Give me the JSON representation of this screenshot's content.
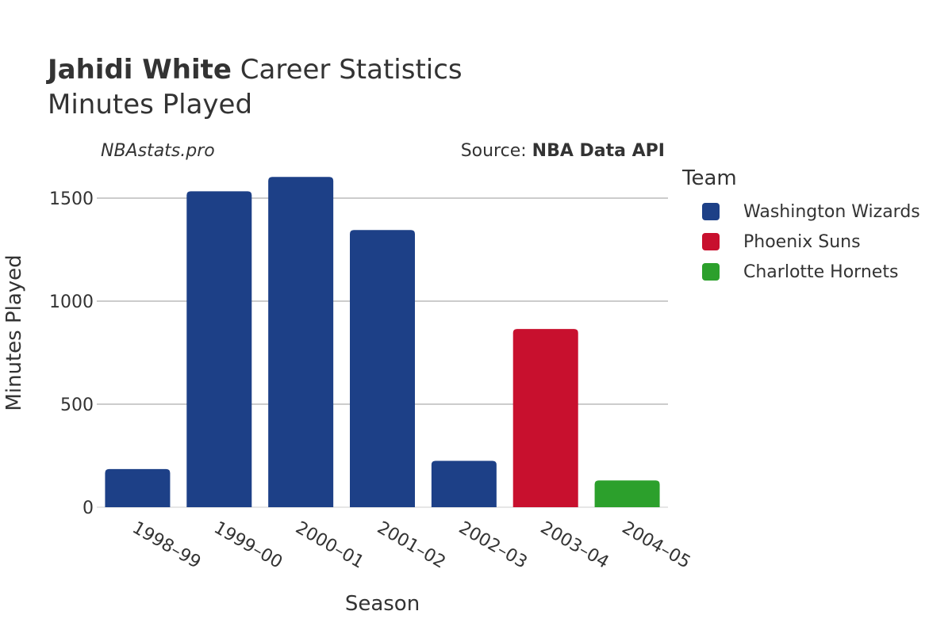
{
  "header": {
    "player_name": "Jahidi White",
    "title_rest": "Career Statistics",
    "subtitle": "Minutes Played",
    "credit": "NBAstats.pro",
    "source_prefix": "Source: ",
    "source_name": "NBA Data API"
  },
  "legend": {
    "title": "Team",
    "items": [
      {
        "label": "Washington Wizards",
        "color": "#1d4087"
      },
      {
        "label": "Phoenix Suns",
        "color": "#c8102e"
      },
      {
        "label": "Charlotte Hornets",
        "color": "#2ca02c"
      }
    ]
  },
  "chart_data": {
    "type": "bar",
    "title": "Jahidi White Career Statistics",
    "subtitle": "Minutes Played",
    "xlabel": "Season",
    "ylabel": "Minutes Played",
    "ylim": [
      0,
      1700
    ],
    "yticks": [
      0,
      500,
      1000,
      1500
    ],
    "grid": true,
    "categories": [
      "1998–99",
      "1999–00",
      "2000–01",
      "2001–02",
      "2002–03",
      "2003–04",
      "2004–05"
    ],
    "values": [
      185,
      1533,
      1603,
      1345,
      225,
      865,
      130
    ],
    "teams": [
      "Washington Wizards",
      "Washington Wizards",
      "Washington Wizards",
      "Washington Wizards",
      "Washington Wizards",
      "Phoenix Suns",
      "Charlotte Hornets"
    ],
    "legend_position": "right"
  }
}
